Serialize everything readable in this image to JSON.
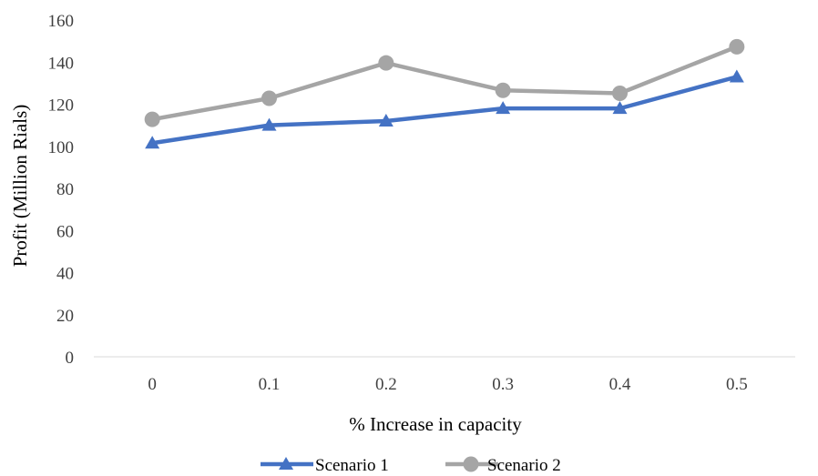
{
  "chart_data": {
    "type": "line",
    "title": "",
    "xlabel": "% Increase in capacity",
    "ylabel": "Profit (Million Rials)",
    "categories": [
      "0",
      "0.1",
      "0.2",
      "0.3",
      "0.4",
      "0.5"
    ],
    "ylim": [
      0,
      160
    ],
    "yticks": [
      "0",
      "20",
      "40",
      "60",
      "80",
      "100",
      "120",
      "140",
      "160"
    ],
    "grid": false,
    "legend_position": "bottom",
    "series": [
      {
        "name": "Scenario 1",
        "values": [
          101.5,
          110,
          112,
          118,
          118,
          133
        ],
        "color": "#4472C4",
        "marker": "triangle"
      },
      {
        "name": "Scenario 2",
        "values": [
          112.8,
          122.8,
          139.6,
          126.6,
          125.2,
          147.3
        ],
        "color": "#A5A5A5",
        "marker": "circle"
      }
    ]
  }
}
